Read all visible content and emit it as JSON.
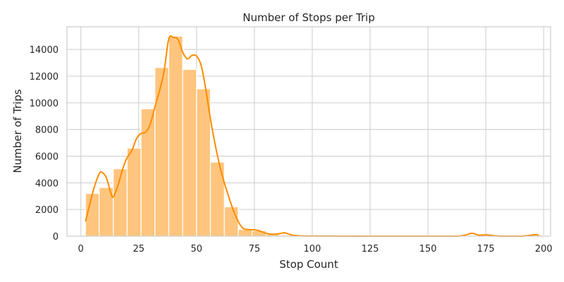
{
  "chart_data": {
    "type": "bar",
    "title": "Number of Stops per Trip",
    "xlabel": "Stop Count",
    "ylabel": "Number of Trips",
    "xlim": [
      -6,
      203
    ],
    "ylim": [
      0,
      15700
    ],
    "xticks": [
      0,
      25,
      50,
      75,
      100,
      125,
      150,
      175,
      200
    ],
    "yticks": [
      0,
      2000,
      4000,
      6000,
      8000,
      10000,
      12000,
      14000
    ],
    "grid": true,
    "bar_color": "#ffc57e",
    "kde_color": "#ff8c00",
    "bins": [
      {
        "start": 2.0,
        "end": 7.9,
        "count": 3200
      },
      {
        "start": 7.9,
        "end": 14.0,
        "count": 3650
      },
      {
        "start": 14.0,
        "end": 20.0,
        "count": 5050
      },
      {
        "start": 20.0,
        "end": 26.0,
        "count": 6600
      },
      {
        "start": 26.0,
        "end": 32.0,
        "count": 9550
      },
      {
        "start": 32.0,
        "end": 38.0,
        "count": 12650
      },
      {
        "start": 38.0,
        "end": 44.0,
        "count": 15000
      },
      {
        "start": 44.0,
        "end": 50.0,
        "count": 12500
      },
      {
        "start": 50.0,
        "end": 56.0,
        "count": 11050
      },
      {
        "start": 56.0,
        "end": 62.0,
        "count": 5550
      },
      {
        "start": 62.0,
        "end": 68.0,
        "count": 2200
      },
      {
        "start": 68.0,
        "end": 74.0,
        "count": 500
      },
      {
        "start": 74.0,
        "end": 80.0,
        "count": 400
      },
      {
        "start": 80.0,
        "end": 86.0,
        "count": 150
      },
      {
        "start": 86.0,
        "end": 92.0,
        "count": 80
      },
      {
        "start": 92.0,
        "end": 98.0,
        "count": 40
      },
      {
        "start": 98.0,
        "end": 104.0,
        "count": 20
      },
      {
        "start": 104.0,
        "end": 110.0,
        "count": 10
      },
      {
        "start": 110.0,
        "end": 116.0,
        "count": 5
      },
      {
        "start": 116.0,
        "end": 122.0,
        "count": 5
      },
      {
        "start": 122.0,
        "end": 128.0,
        "count": 5
      },
      {
        "start": 128.0,
        "end": 134.0,
        "count": 5
      },
      {
        "start": 134.0,
        "end": 140.0,
        "count": 5
      },
      {
        "start": 140.0,
        "end": 146.0,
        "count": 5
      },
      {
        "start": 146.0,
        "end": 152.0,
        "count": 5
      },
      {
        "start": 152.0,
        "end": 158.0,
        "count": 5
      },
      {
        "start": 158.0,
        "end": 164.0,
        "count": 5
      },
      {
        "start": 164.0,
        "end": 170.0,
        "count": 60
      },
      {
        "start": 170.0,
        "end": 176.0,
        "count": 40
      },
      {
        "start": 176.0,
        "end": 182.0,
        "count": 10
      },
      {
        "start": 182.0,
        "end": 188.0,
        "count": 5
      },
      {
        "start": 188.0,
        "end": 194.0,
        "count": 5
      },
      {
        "start": 194.0,
        "end": 200.0,
        "count": 80
      }
    ],
    "kde_curve": [
      [
        2,
        1100
      ],
      [
        4,
        2500
      ],
      [
        6,
        3800
      ],
      [
        8,
        4700
      ],
      [
        9,
        4800
      ],
      [
        11,
        4400
      ],
      [
        13,
        3200
      ],
      [
        14,
        2950
      ],
      [
        16,
        3800
      ],
      [
        18,
        5000
      ],
      [
        20,
        5900
      ],
      [
        22,
        6400
      ],
      [
        24,
        7300
      ],
      [
        26,
        7700
      ],
      [
        28,
        7800
      ],
      [
        30,
        8400
      ],
      [
        32,
        9700
      ],
      [
        34,
        10900
      ],
      [
        36,
        12400
      ],
      [
        38,
        14800
      ],
      [
        40,
        14900
      ],
      [
        42,
        14750
      ],
      [
        44,
        13800
      ],
      [
        46,
        13300
      ],
      [
        48,
        13550
      ],
      [
        50,
        13500
      ],
      [
        52,
        12800
      ],
      [
        54,
        11000
      ],
      [
        56,
        8800
      ],
      [
        58,
        6900
      ],
      [
        60,
        5300
      ],
      [
        62,
        4000
      ],
      [
        64,
        2900
      ],
      [
        66,
        1900
      ],
      [
        68,
        1100
      ],
      [
        70,
        600
      ],
      [
        72,
        500
      ],
      [
        74,
        480
      ],
      [
        76,
        450
      ],
      [
        78,
        350
      ],
      [
        80,
        220
      ],
      [
        82,
        150
      ],
      [
        84,
        150
      ],
      [
        86,
        200
      ],
      [
        88,
        250
      ],
      [
        90,
        150
      ],
      [
        92,
        60
      ],
      [
        96,
        20
      ],
      [
        100,
        10
      ],
      [
        120,
        0
      ],
      [
        150,
        0
      ],
      [
        162,
        0
      ],
      [
        166,
        80
      ],
      [
        169,
        220
      ],
      [
        172,
        80
      ],
      [
        175,
        100
      ],
      [
        178,
        50
      ],
      [
        182,
        0
      ],
      [
        190,
        0
      ],
      [
        194,
        60
      ],
      [
        197,
        120
      ],
      [
        198,
        0
      ]
    ]
  }
}
